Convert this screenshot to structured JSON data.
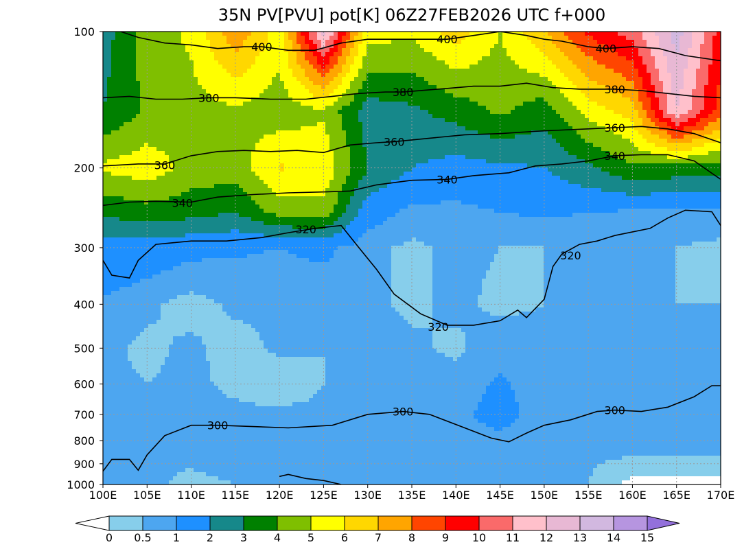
{
  "chart_data": {
    "type": "heatmap",
    "title": "35N PV[PVU] pot[K] 06Z27FEB2026 UTC f+000",
    "filled_variable": "PV [PVU]",
    "contour_variable": "pot [K]",
    "x_ticks": [
      100,
      105,
      110,
      115,
      120,
      125,
      130,
      135,
      140,
      145,
      150,
      155,
      160,
      165,
      170
    ],
    "x_tick_labels": [
      "100E",
      "105E",
      "110E",
      "115E",
      "120E",
      "125E",
      "130E",
      "135E",
      "140E",
      "145E",
      "150E",
      "155E",
      "160E",
      "165E",
      "170E"
    ],
    "xlim": [
      100,
      170
    ],
    "y_ticks": [
      100,
      200,
      300,
      400,
      500,
      600,
      700,
      800,
      900,
      1000
    ],
    "y_tick_labels": [
      "100",
      "200",
      "300",
      "400",
      "500",
      "600",
      "700",
      "800",
      "900",
      "1000"
    ],
    "ylim": [
      1000,
      100
    ],
    "y_scale": "log-pressure",
    "grid": true,
    "colorbar": {
      "levels": [
        "0",
        "0.5",
        "1",
        "2",
        "3",
        "4",
        "5",
        "6",
        "7",
        "8",
        "9",
        "10",
        "11",
        "12",
        "13",
        "14",
        "15"
      ],
      "under_color": "#ffffff",
      "over_color": "#9370db",
      "colors": [
        "#87ceeb",
        "#4da6f0",
        "#1e90ff",
        "#16888a",
        "#008000",
        "#7fbf00",
        "#ffff00",
        "#ffd700",
        "#ffa500",
        "#ff4500",
        "#ff0000",
        "#fa6a6a",
        "#ffc0cb",
        "#e8b8d4",
        "#d2b8e0",
        "#b695e0"
      ]
    },
    "pv_field": {
      "lon": [
        100,
        105,
        110,
        115,
        120,
        125,
        130,
        135,
        140,
        145,
        150,
        155,
        160,
        165,
        170
      ],
      "p": [
        100,
        150,
        200,
        250,
        300,
        400,
        500,
        600,
        700,
        850,
        1000
      ],
      "values": [
        [
          2.5,
          4.5,
          5.2,
          7.8,
          5.5,
          12.5,
          5.5,
          5.2,
          6.5,
          5.0,
          7.0,
          9.2,
          10.5,
          13.5,
          9.5
        ],
        [
          3.0,
          4.2,
          4.6,
          4.8,
          4.4,
          4.8,
          2.5,
          2.8,
          3.4,
          4.2,
          3.4,
          5.4,
          6.5,
          12.0,
          8.5
        ],
        [
          5.2,
          5.6,
          4.6,
          4.5,
          6.1,
          5.8,
          3.0,
          2.0,
          1.6,
          1.8,
          2.0,
          2.8,
          3.8,
          3.6,
          3.4
        ],
        [
          3.2,
          3.6,
          3.4,
          3.0,
          4.4,
          4.6,
          1.4,
          0.8,
          0.8,
          1.0,
          1.1,
          1.0,
          0.9,
          0.8,
          0.8
        ],
        [
          1.6,
          1.5,
          1.2,
          1.1,
          1.0,
          1.2,
          0.6,
          0.4,
          0.6,
          0.5,
          0.5,
          0.6,
          0.6,
          0.5,
          0.4
        ],
        [
          0.9,
          0.6,
          0.3,
          0.6,
          0.6,
          0.5,
          0.6,
          0.4,
          0.6,
          0.4,
          0.5,
          0.6,
          0.5,
          0.5,
          0.5
        ],
        [
          0.6,
          0.4,
          0.6,
          0.3,
          0.6,
          0.5,
          0.7,
          0.6,
          0.4,
          0.8,
          0.6,
          0.6,
          0.5,
          0.5,
          0.5
        ],
        [
          0.6,
          0.5,
          0.6,
          0.4,
          0.2,
          0.5,
          0.6,
          0.7,
          0.7,
          1.1,
          0.7,
          0.6,
          0.5,
          0.6,
          0.6
        ],
        [
          0.5,
          0.6,
          0.6,
          0.6,
          0.6,
          0.6,
          0.6,
          0.7,
          0.8,
          1.3,
          0.6,
          0.6,
          0.6,
          0.7,
          0.7
        ],
        [
          0.6,
          0.5,
          0.6,
          0.7,
          0.6,
          0.7,
          0.6,
          0.7,
          0.8,
          0.6,
          0.7,
          0.6,
          0.6,
          0.6,
          0.6
        ],
        [
          0.6,
          0.6,
          0.4,
          0.5,
          0.6,
          0.5,
          0.6,
          0.6,
          0.5,
          0.5,
          0.6,
          0.5,
          -0.2,
          -0.2,
          -0.2
        ]
      ]
    },
    "theta_contours": [
      {
        "level": 300,
        "label": "300",
        "label_at": [
          [
            113,
            740
          ],
          [
            134,
            690
          ],
          [
            158,
            685
          ]
        ],
        "points": [
          [
            100,
            935
          ],
          [
            101,
            880
          ],
          [
            103,
            880
          ],
          [
            104,
            930
          ],
          [
            105,
            860
          ],
          [
            107,
            780
          ],
          [
            110,
            740
          ],
          [
            113,
            740
          ],
          [
            117,
            745
          ],
          [
            121,
            750
          ],
          [
            126,
            740
          ],
          [
            130,
            700
          ],
          [
            134,
            690
          ],
          [
            137,
            700
          ],
          [
            141,
            750
          ],
          [
            144,
            790
          ],
          [
            146,
            805
          ],
          [
            148,
            770
          ],
          [
            150,
            740
          ],
          [
            153,
            720
          ],
          [
            156,
            690
          ],
          [
            158,
            685
          ],
          [
            161,
            690
          ],
          [
            164,
            675
          ],
          [
            167,
            640
          ],
          [
            169,
            605
          ],
          [
            170,
            605
          ]
        ]
      },
      {
        "level": 300,
        "label": "",
        "label_at": [],
        "points": [
          [
            120,
            960
          ],
          [
            121,
            950
          ],
          [
            123,
            970
          ],
          [
            125,
            980
          ],
          [
            127,
            1000
          ]
        ]
      },
      {
        "level": 320,
        "label": "320",
        "label_at": [
          [
            123,
            273
          ],
          [
            138,
            448
          ],
          [
            153,
            312
          ]
        ],
        "points": [
          [
            100,
            320
          ],
          [
            101,
            345
          ],
          [
            103,
            350
          ],
          [
            104,
            320
          ],
          [
            106,
            295
          ],
          [
            110,
            290
          ],
          [
            114,
            290
          ],
          [
            118,
            285
          ],
          [
            121,
            278
          ],
          [
            124,
            272
          ],
          [
            127,
            268
          ],
          [
            129,
            300
          ],
          [
            131,
            335
          ],
          [
            133,
            380
          ],
          [
            136,
            420
          ],
          [
            139,
            445
          ],
          [
            142,
            445
          ],
          [
            145,
            435
          ],
          [
            147,
            412
          ],
          [
            148,
            428
          ],
          [
            150,
            390
          ],
          [
            151,
            330
          ],
          [
            152,
            310
          ],
          [
            154,
            295
          ],
          [
            156,
            290
          ],
          [
            158,
            282
          ],
          [
            162,
            272
          ],
          [
            164,
            258
          ],
          [
            166,
            248
          ],
          [
            169,
            250
          ],
          [
            170,
            268
          ]
        ]
      },
      {
        "level": 340,
        "label": "340",
        "label_at": [
          [
            109,
            239
          ],
          [
            139,
            212
          ],
          [
            158,
            188
          ]
        ],
        "points": [
          [
            100,
            242
          ],
          [
            103,
            238
          ],
          [
            106,
            237
          ],
          [
            110,
            238
          ],
          [
            113,
            232
          ],
          [
            117,
            229
          ],
          [
            121,
            227
          ],
          [
            125,
            226
          ],
          [
            128,
            225
          ],
          [
            131,
            218
          ],
          [
            135,
            213
          ],
          [
            139,
            212
          ],
          [
            142,
            208
          ],
          [
            146,
            205
          ],
          [
            149,
            198
          ],
          [
            152,
            196
          ],
          [
            155,
            193
          ],
          [
            158,
            188
          ],
          [
            161,
            187
          ],
          [
            164,
            187
          ],
          [
            167,
            193
          ],
          [
            170,
            212
          ]
        ]
      },
      {
        "level": 360,
        "label": "360",
        "label_at": [
          [
            107,
            197
          ],
          [
            133,
            175
          ],
          [
            158,
            163
          ]
        ],
        "points": [
          [
            100,
            198
          ],
          [
            104,
            196
          ],
          [
            107,
            196
          ],
          [
            110,
            188
          ],
          [
            113,
            184
          ],
          [
            116,
            183
          ],
          [
            119,
            184
          ],
          [
            122,
            183
          ],
          [
            125,
            185
          ],
          [
            128,
            178
          ],
          [
            131,
            176
          ],
          [
            133,
            175
          ],
          [
            137,
            172
          ],
          [
            141,
            169
          ],
          [
            145,
            168
          ],
          [
            149,
            166
          ],
          [
            152,
            165
          ],
          [
            155,
            164
          ],
          [
            158,
            163
          ],
          [
            161,
            162
          ],
          [
            164,
            164
          ],
          [
            167,
            168
          ],
          [
            170,
            176
          ]
        ]
      },
      {
        "level": 380,
        "label": "380",
        "label_at": [
          [
            112,
            140
          ],
          [
            134,
            136
          ],
          [
            158,
            134
          ]
        ],
        "points": [
          [
            100,
            140
          ],
          [
            103,
            139
          ],
          [
            106,
            141
          ],
          [
            109,
            141
          ],
          [
            112,
            140
          ],
          [
            115,
            140
          ],
          [
            119,
            141
          ],
          [
            123,
            141
          ],
          [
            126,
            139
          ],
          [
            129,
            137
          ],
          [
            132,
            136
          ],
          [
            134,
            136
          ],
          [
            138,
            134
          ],
          [
            142,
            132
          ],
          [
            145,
            132
          ],
          [
            148,
            130
          ],
          [
            151,
            133
          ],
          [
            154,
            134
          ],
          [
            158,
            134
          ],
          [
            161,
            135
          ],
          [
            164,
            137
          ],
          [
            167,
            139
          ],
          [
            170,
            140
          ]
        ]
      },
      {
        "level": 400,
        "label": "400",
        "label_at": [
          [
            118,
            108
          ],
          [
            139,
            104
          ],
          [
            157,
            109
          ]
        ],
        "points": [
          [
            102,
            100
          ],
          [
            104,
            103
          ],
          [
            107,
            106
          ],
          [
            110,
            107
          ],
          [
            113,
            109
          ],
          [
            116,
            108
          ],
          [
            118,
            108
          ],
          [
            121,
            110
          ],
          [
            124,
            110
          ],
          [
            127,
            106
          ],
          [
            130,
            104
          ],
          [
            133,
            104
          ],
          [
            136,
            104
          ],
          [
            139,
            104
          ],
          [
            142,
            102
          ],
          [
            145,
            100
          ],
          [
            148,
            102
          ],
          [
            150,
            104
          ],
          [
            152,
            105
          ],
          [
            155,
            108
          ],
          [
            157,
            109
          ],
          [
            160,
            108
          ],
          [
            163,
            109
          ],
          [
            166,
            113
          ],
          [
            170,
            116
          ]
        ]
      }
    ]
  }
}
